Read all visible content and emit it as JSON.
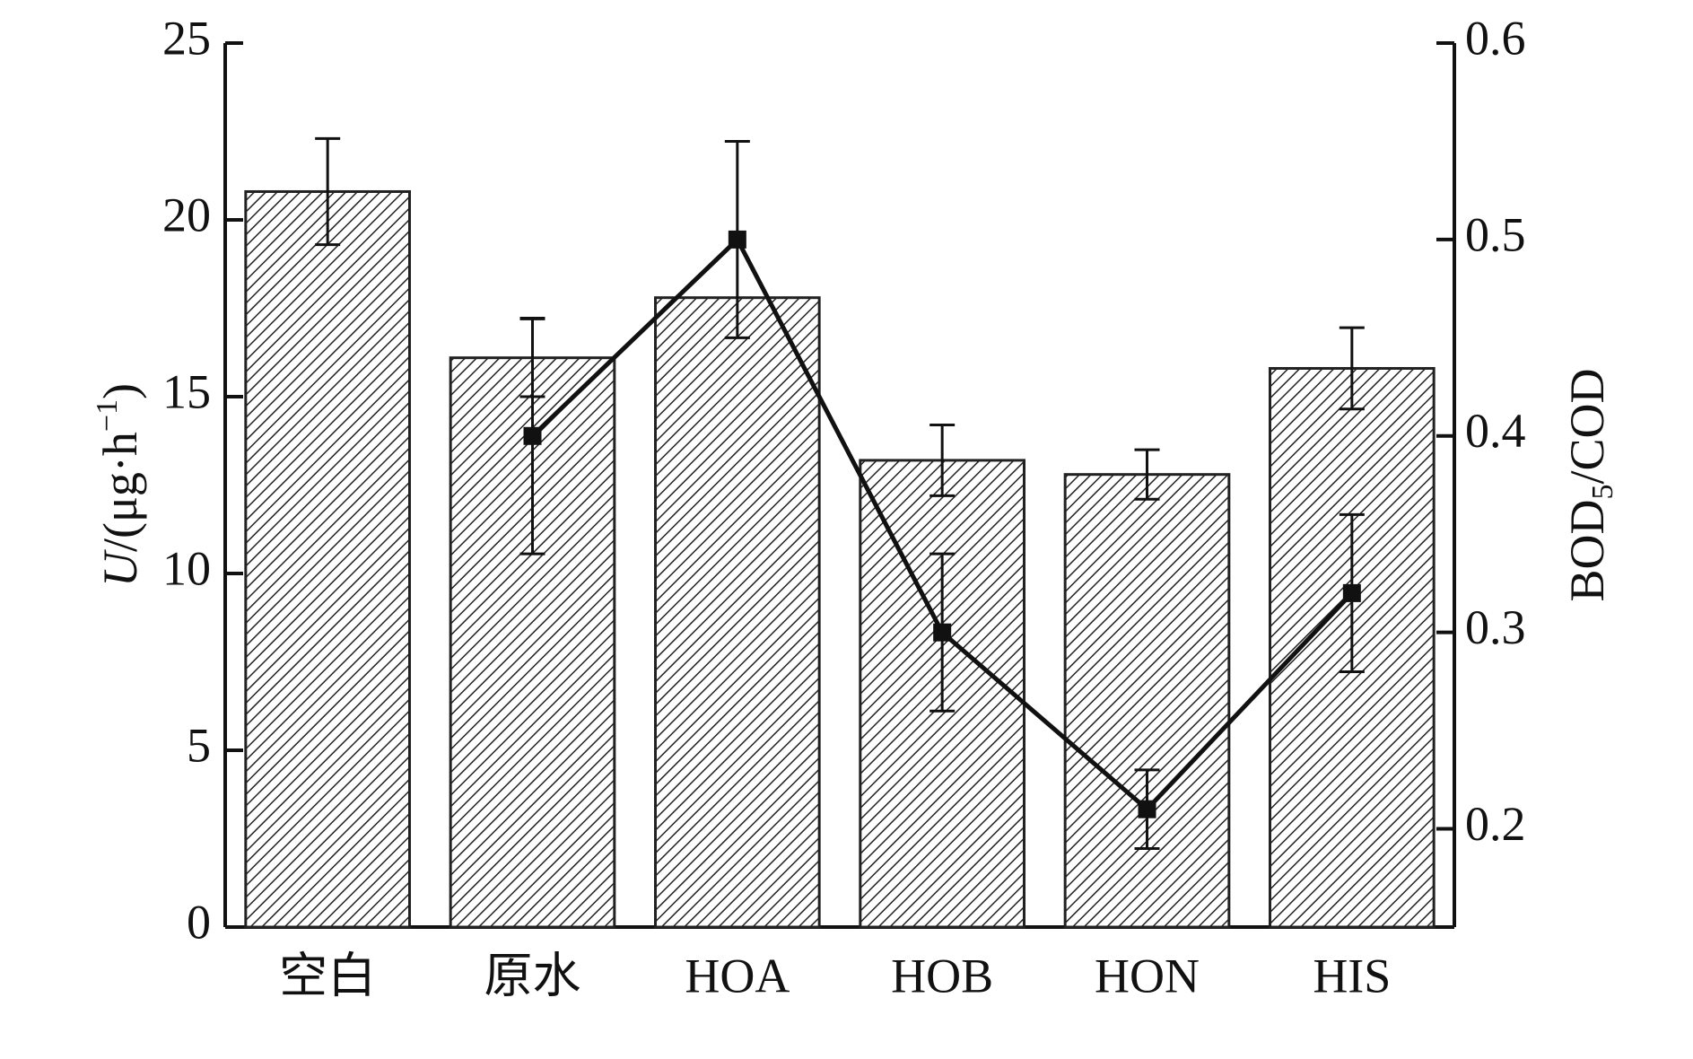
{
  "chart_data": {
    "type": "bar",
    "categories": [
      "空白",
      "原水",
      "HOA",
      "HOB",
      "HON",
      "HIS"
    ],
    "y_label": [
      "U",
      "/(μg·h",
      "−1",
      ")"
    ],
    "y2_label": [
      "BOD",
      "5",
      "/COD"
    ],
    "ylim": [
      0,
      25
    ],
    "yticks": [
      0,
      5,
      10,
      15,
      20,
      25
    ],
    "y2lim": [
      0.15,
      0.6
    ],
    "y2ticks": [
      0.2,
      0.3,
      0.4,
      0.5,
      0.6
    ],
    "series": [
      {
        "type": "bar",
        "color": "#222222",
        "values": [
          20.8,
          16.1,
          17.8,
          13.2,
          12.8,
          15.8
        ],
        "errors": [
          1.5,
          1.1,
          null,
          1.0,
          0.7,
          1.15
        ]
      },
      {
        "type": "line",
        "axis": "y2",
        "color": "#111111",
        "values": [
          null,
          0.4,
          0.5,
          0.3,
          0.21,
          0.32
        ],
        "errors": [
          null,
          0.06,
          0.05,
          0.04,
          0.02,
          0.04
        ]
      }
    ]
  }
}
